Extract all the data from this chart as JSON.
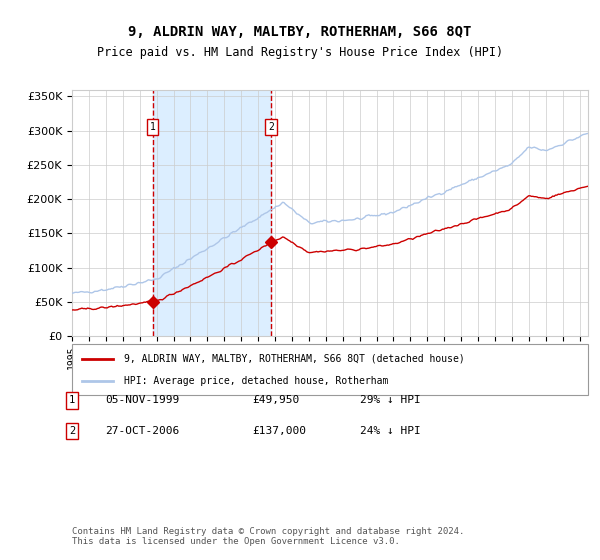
{
  "title": "9, ALDRIN WAY, MALTBY, ROTHERHAM, S66 8QT",
  "subtitle": "Price paid vs. HM Land Registry's House Price Index (HPI)",
  "hpi_legend": "HPI: Average price, detached house, Rotherham",
  "property_legend": "9, ALDRIN WAY, MALTBY, ROTHERHAM, S66 8QT (detached house)",
  "transaction1_date": "05-NOV-1999",
  "transaction1_price": 49950,
  "transaction1_hpi_pct": "29% ↓ HPI",
  "transaction2_date": "27-OCT-2006",
  "transaction2_price": 137000,
  "transaction2_hpi_pct": "24% ↓ HPI",
  "footer": "Contains HM Land Registry data © Crown copyright and database right 2024.\nThis data is licensed under the Open Government Licence v3.0.",
  "hpi_color": "#aec6e8",
  "property_color": "#cc0000",
  "marker_color": "#cc0000",
  "highlight_color": "#dceeff",
  "vline_color": "#cc0000",
  "grid_color": "#cccccc",
  "bg_color": "#ffffff",
  "ylim": [
    0,
    360000
  ],
  "xlabel_color": "#000000",
  "box_color": "#cc0000"
}
